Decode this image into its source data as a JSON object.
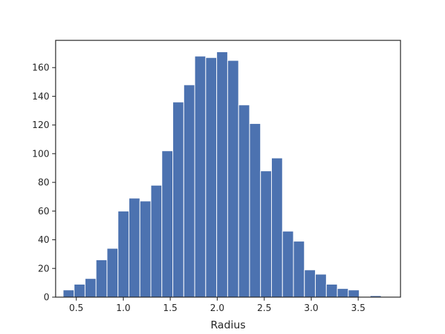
{
  "chart_data": {
    "type": "bar",
    "subtype": "histogram",
    "title": "",
    "xlabel": "Radius",
    "ylabel": "",
    "xlim": [
      0.28,
      3.95
    ],
    "ylim": [
      0,
      179
    ],
    "xticks": [
      0.5,
      1.0,
      1.5,
      2.0,
      2.5,
      3.0,
      3.5
    ],
    "xtick_labels": [
      "0.5",
      "1.0",
      "1.5",
      "2.0",
      "2.5",
      "3.0",
      "3.5"
    ],
    "yticks": [
      0,
      20,
      40,
      60,
      80,
      100,
      120,
      140,
      160
    ],
    "ytick_labels": [
      "0",
      "20",
      "40",
      "60",
      "80",
      "100",
      "120",
      "140",
      "160"
    ],
    "bin_start": 0.36,
    "bin_width": 0.1167,
    "values": [
      5,
      9,
      13,
      26,
      34,
      60,
      69,
      67,
      78,
      102,
      136,
      148,
      168,
      167,
      171,
      165,
      134,
      121,
      88,
      97,
      46,
      39,
      19,
      16,
      9,
      6,
      5,
      0,
      1
    ],
    "bar_color": "#4c72b0",
    "bar_edge_color": "#ffffff",
    "grid": false,
    "legend": "none"
  }
}
